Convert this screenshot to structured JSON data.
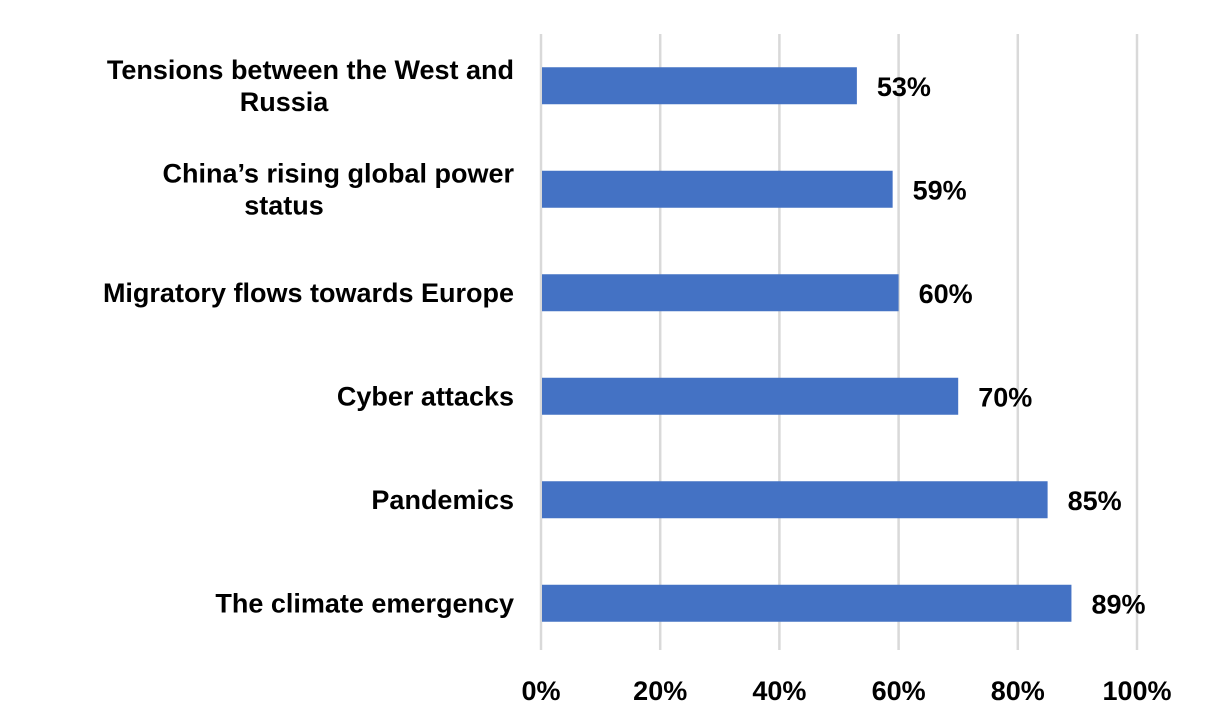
{
  "chart_data": {
    "type": "bar",
    "orientation": "horizontal",
    "categories": [
      "Tensions between the West and Russia",
      "China’s rising global power status",
      "Migratory flows towards Europe",
      "Cyber attacks",
      "Pandemics",
      "The climate emergency"
    ],
    "values": [
      53,
      59,
      60,
      70,
      85,
      89
    ],
    "data_labels": [
      "53%",
      "59%",
      "60%",
      "70%",
      "85%",
      "89%"
    ],
    "xlim": [
      0,
      100
    ],
    "x_ticks": [
      0,
      20,
      40,
      60,
      80,
      100
    ],
    "x_tick_labels": [
      "0%",
      "20%",
      "40%",
      "60%",
      "80%",
      "100%"
    ],
    "grid": true,
    "legend": "none",
    "bar_color": "#4472c4",
    "gridline_color": "#d9d9d9"
  }
}
